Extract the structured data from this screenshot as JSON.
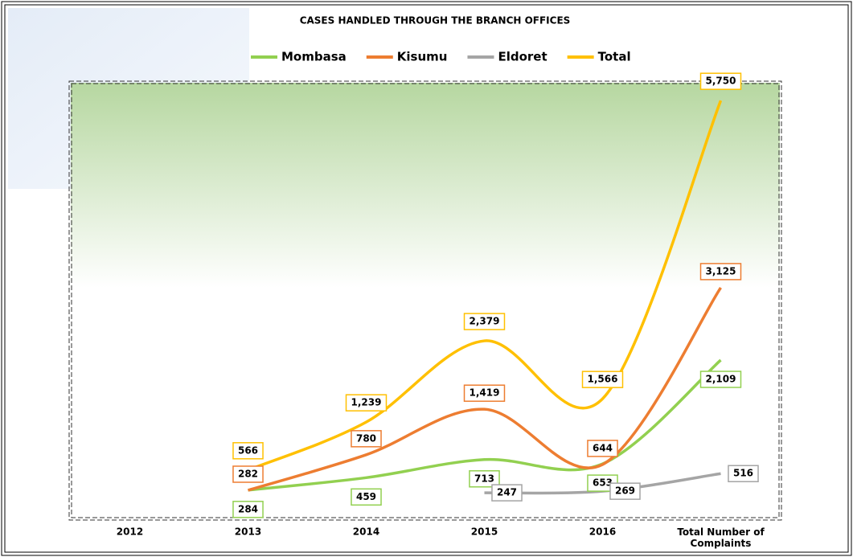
{
  "chart_data": {
    "type": "line",
    "title": "CASES  HANDLED  THROUGH THE BRANCH OFFICES",
    "categories": [
      "2012",
      "2013",
      "2014",
      "2015",
      "2016",
      "Total Number of Complaints"
    ],
    "ylim": [
      0,
      6000
    ],
    "series": [
      {
        "name": "Mombasa",
        "color": "#92d050",
        "values": [
          null,
          284,
          459,
          713,
          653,
          2109
        ],
        "value_labels": [
          null,
          "284",
          "459",
          "713",
          "653",
          "2,109"
        ]
      },
      {
        "name": "Kisumu",
        "color": "#ed7d31",
        "values": [
          null,
          282,
          780,
          1419,
          644,
          3125
        ],
        "value_labels": [
          null,
          "282",
          "780",
          "1,419",
          "644",
          "3,125"
        ]
      },
      {
        "name": "Eldoret",
        "color": "#a5a5a5",
        "values": [
          null,
          null,
          null,
          247,
          269,
          516
        ],
        "value_labels": [
          null,
          null,
          null,
          "247",
          "269",
          "516"
        ]
      },
      {
        "name": "Total",
        "color": "#ffc000",
        "values": [
          null,
          566,
          1239,
          2379,
          1566,
          5750
        ],
        "value_labels": [
          null,
          "566",
          "1,239",
          "2,379",
          "1,566",
          "5,750"
        ]
      }
    ]
  }
}
